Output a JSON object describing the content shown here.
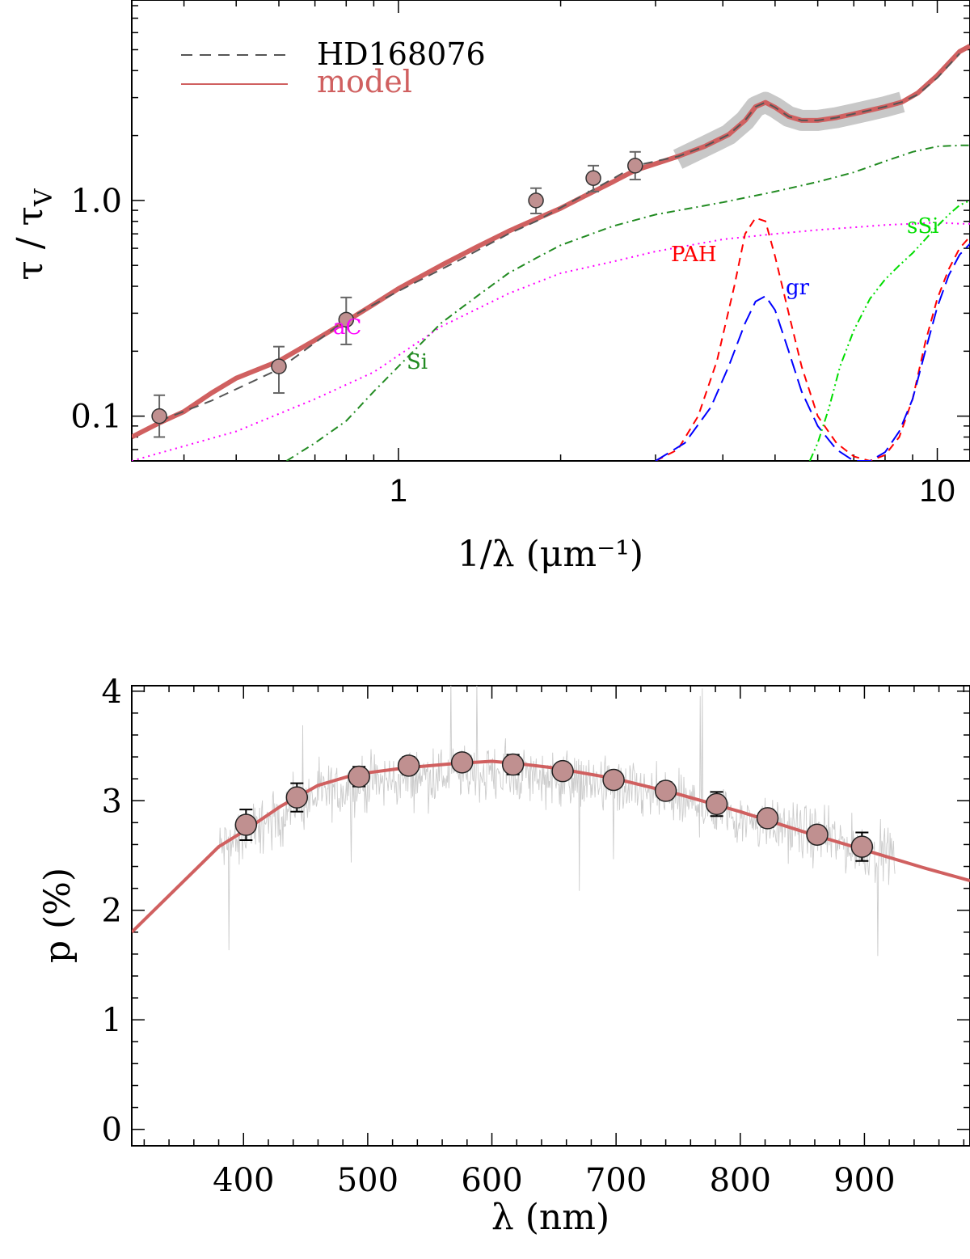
{
  "chart_data": [
    {
      "type": "line",
      "xlabel": "1/λ (μm⁻¹)",
      "ylabel": "τ / τ",
      "ylabel_sub": "V",
      "x_scale": "log",
      "y_scale": "log",
      "xlim": [
        0.32,
        11.5
      ],
      "ylim": [
        0.062,
        8.5
      ],
      "x_ticks": [
        {
          "v": 1,
          "label": "1"
        },
        {
          "v": 10,
          "label": "10"
        }
      ],
      "y_ticks": [
        {
          "v": 0.1,
          "label": "0.1"
        },
        {
          "v": 1.0,
          "label": "1.0"
        }
      ],
      "legend": {
        "placement": "top-left",
        "entries": [
          {
            "label": "HD168076",
            "color": "#555555",
            "style": "dashed"
          },
          {
            "label": "model",
            "color": "#d06060",
            "style": "solid"
          }
        ]
      },
      "uv_band": {
        "color": "#c8c8c8",
        "x": [
          3.3,
          3.7,
          4.1,
          4.4,
          4.6,
          4.8,
          5.0,
          5.3,
          5.6,
          6.0,
          6.5,
          7.0,
          7.5,
          8.0,
          8.6
        ],
        "y": [
          1.55,
          1.78,
          2.02,
          2.35,
          2.72,
          2.85,
          2.7,
          2.45,
          2.35,
          2.35,
          2.42,
          2.52,
          2.62,
          2.72,
          2.86
        ]
      },
      "observed": {
        "name": "HD168076",
        "color": "#555555",
        "x": [
          0.36,
          0.45,
          0.6,
          0.8,
          1.0,
          1.3,
          1.6,
          1.8,
          2.1,
          2.5,
          2.75,
          3.3,
          3.7,
          4.1,
          4.4,
          4.6,
          4.8,
          5.0,
          5.3,
          5.6,
          6.0,
          6.5,
          7.0,
          7.5,
          8.0,
          8.6,
          9.2,
          10.0,
          11.0
        ],
        "y": [
          0.095,
          0.118,
          0.165,
          0.28,
          0.38,
          0.53,
          0.7,
          0.8,
          0.99,
          1.26,
          1.45,
          1.6,
          1.78,
          2.02,
          2.35,
          2.72,
          2.85,
          2.7,
          2.45,
          2.35,
          2.35,
          2.42,
          2.52,
          2.62,
          2.72,
          2.86,
          3.1,
          3.7,
          4.8
        ]
      },
      "model": {
        "name": "model",
        "color": "#d06060",
        "x": [
          0.32,
          0.36,
          0.4,
          0.45,
          0.5,
          0.6,
          0.7,
          0.8,
          0.9,
          1.0,
          1.2,
          1.4,
          1.6,
          1.8,
          2.0,
          2.2,
          2.5,
          2.75,
          3.0,
          3.3,
          3.7,
          4.1,
          4.4,
          4.6,
          4.8,
          5.0,
          5.3,
          5.6,
          6.0,
          6.5,
          7.0,
          7.5,
          8.0,
          8.6,
          9.2,
          10.0,
          11.0,
          11.5
        ],
        "y": [
          0.08,
          0.093,
          0.105,
          0.128,
          0.15,
          0.18,
          0.225,
          0.275,
          0.33,
          0.39,
          0.5,
          0.61,
          0.72,
          0.82,
          0.92,
          1.04,
          1.22,
          1.38,
          1.48,
          1.6,
          1.78,
          2.02,
          2.35,
          2.72,
          2.85,
          2.7,
          2.45,
          2.35,
          2.35,
          2.42,
          2.52,
          2.62,
          2.72,
          2.86,
          3.15,
          3.8,
          4.9,
          5.2
        ]
      },
      "photometry": {
        "color": "#c09090",
        "points": [
          {
            "x": 0.36,
            "y": 0.1,
            "lo": 0.08,
            "hi": 0.125
          },
          {
            "x": 0.6,
            "y": 0.17,
            "lo": 0.128,
            "hi": 0.21
          },
          {
            "x": 0.8,
            "y": 0.28,
            "lo": 0.215,
            "hi": 0.355
          },
          {
            "x": 1.8,
            "y": 1.0,
            "lo": 0.87,
            "hi": 1.14
          },
          {
            "x": 2.3,
            "y": 1.27,
            "lo": 1.1,
            "hi": 1.45
          },
          {
            "x": 2.75,
            "y": 1.45,
            "lo": 1.25,
            "hi": 1.68
          }
        ]
      },
      "components": [
        {
          "name": "aC",
          "color": "#ff00ff",
          "style": "dotted",
          "x": [
            0.32,
            0.5,
            0.7,
            0.9,
            1.2,
            1.6,
            2.0,
            2.5,
            3.0,
            4.0,
            5.0,
            6.0,
            7.0,
            8.0,
            9.0,
            10.0,
            11.0,
            11.5
          ],
          "y": [
            0.062,
            0.085,
            0.12,
            0.16,
            0.26,
            0.37,
            0.46,
            0.52,
            0.58,
            0.66,
            0.7,
            0.73,
            0.75,
            0.77,
            0.78,
            0.79,
            0.78,
            0.78
          ]
        },
        {
          "name": "Si",
          "color": "#228b22",
          "style": "dashdot",
          "x": [
            0.62,
            0.7,
            0.8,
            0.9,
            1.0,
            1.2,
            1.4,
            1.6,
            1.8,
            2.0,
            2.5,
            3.0,
            4.0,
            5.0,
            6.0,
            7.0,
            8.0,
            9.0,
            10.0,
            11.0,
            11.5
          ],
          "y": [
            0.062,
            0.075,
            0.095,
            0.13,
            0.17,
            0.27,
            0.36,
            0.46,
            0.54,
            0.62,
            0.76,
            0.86,
            0.98,
            1.1,
            1.22,
            1.35,
            1.52,
            1.68,
            1.78,
            1.8,
            1.8
          ]
        },
        {
          "name": "PAH",
          "color": "#ff0000",
          "style": "dashed",
          "x": [
            3.0,
            3.3,
            3.6,
            3.9,
            4.2,
            4.4,
            4.6,
            4.8,
            5.0,
            5.3,
            5.6,
            6.0,
            6.5,
            7.0,
            7.5,
            8.0,
            8.5,
            9.0,
            9.5,
            10.0,
            10.5,
            11.0,
            11.5
          ],
          "y": [
            0.062,
            0.07,
            0.1,
            0.18,
            0.4,
            0.7,
            0.83,
            0.8,
            0.55,
            0.3,
            0.17,
            0.1,
            0.075,
            0.065,
            0.062,
            0.066,
            0.08,
            0.12,
            0.22,
            0.35,
            0.48,
            0.6,
            0.68
          ]
        },
        {
          "name": "gr",
          "color": "#0000ff",
          "style": "longdash",
          "x": [
            3.0,
            3.4,
            3.8,
            4.1,
            4.4,
            4.6,
            4.8,
            5.0,
            5.3,
            5.6,
            6.0,
            6.5,
            7.0,
            7.5,
            8.0,
            8.5,
            9.0,
            9.5,
            10.0,
            10.5,
            11.0,
            11.5
          ],
          "y": [
            0.062,
            0.075,
            0.11,
            0.17,
            0.27,
            0.34,
            0.36,
            0.31,
            0.2,
            0.13,
            0.09,
            0.07,
            0.062,
            0.062,
            0.068,
            0.085,
            0.12,
            0.2,
            0.32,
            0.45,
            0.56,
            0.63
          ]
        },
        {
          "name": "sSi",
          "color": "#00dd00",
          "style": "dashdotdot",
          "x": [
            5.8,
            6.0,
            6.3,
            6.6,
            7.0,
            7.5,
            8.0,
            8.5,
            9.0,
            9.5,
            10.0,
            10.5,
            11.0,
            11.5
          ],
          "y": [
            0.062,
            0.075,
            0.11,
            0.17,
            0.25,
            0.35,
            0.43,
            0.5,
            0.57,
            0.66,
            0.76,
            0.86,
            0.95,
            1.0
          ]
        }
      ]
    },
    {
      "type": "line",
      "xlabel": "λ   (nm)",
      "ylabel": "p (%)",
      "xlim": [
        310,
        985
      ],
      "ylim": [
        -0.15,
        4.05
      ],
      "x_ticks": [
        400,
        500,
        600,
        700,
        800,
        900
      ],
      "y_ticks": [
        0,
        1,
        2,
        3,
        4
      ],
      "noisy_spectrum": {
        "color": "#cccccc",
        "x_range": [
          380,
          925
        ],
        "envelope_x": [
          380,
          420,
          460,
          500,
          540,
          580,
          620,
          660,
          700,
          740,
          780,
          820,
          860,
          900,
          925
        ],
        "envelope_y": [
          2.55,
          2.8,
          3.05,
          3.15,
          3.22,
          3.25,
          3.25,
          3.2,
          3.12,
          3.02,
          2.92,
          2.8,
          2.68,
          2.55,
          2.5
        ],
        "spread": 0.38
      },
      "model": {
        "name": "model",
        "color": "#d06060",
        "x": [
          310,
          380,
          400,
          430,
          460,
          490,
          530,
          570,
          600,
          620,
          650,
          700,
          750,
          800,
          850,
          900,
          950,
          985
        ],
        "y": [
          1.8,
          2.58,
          2.72,
          2.95,
          3.14,
          3.24,
          3.3,
          3.34,
          3.36,
          3.34,
          3.3,
          3.2,
          3.06,
          2.9,
          2.72,
          2.55,
          2.38,
          2.27
        ]
      },
      "photometry": {
        "color": "#c09090",
        "points": [
          {
            "x": 402,
            "y": 2.78,
            "err": 0.14
          },
          {
            "x": 443,
            "y": 3.03,
            "err": 0.13
          },
          {
            "x": 493,
            "y": 3.22,
            "err": 0.09
          },
          {
            "x": 533,
            "y": 3.32,
            "err": 0.08
          },
          {
            "x": 576,
            "y": 3.35,
            "err": 0.06
          },
          {
            "x": 617,
            "y": 3.33,
            "err": 0.09
          },
          {
            "x": 657,
            "y": 3.27,
            "err": 0.05
          },
          {
            "x": 698,
            "y": 3.19,
            "err": 0.06
          },
          {
            "x": 740,
            "y": 3.09,
            "err": 0.08
          },
          {
            "x": 781,
            "y": 2.97,
            "err": 0.11
          },
          {
            "x": 822,
            "y": 2.84,
            "err": 0.08
          },
          {
            "x": 862,
            "y": 2.69,
            "err": 0.05
          },
          {
            "x": 898,
            "y": 2.58,
            "err": 0.13
          }
        ]
      }
    }
  ]
}
